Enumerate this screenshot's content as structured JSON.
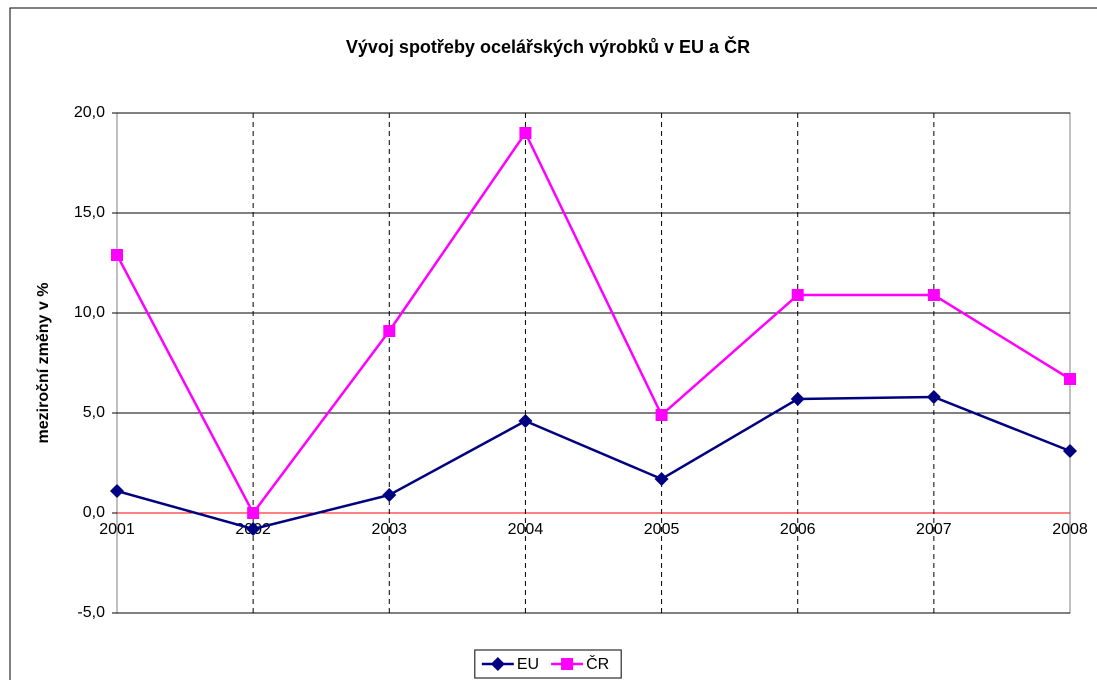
{
  "chart_data": {
    "type": "line",
    "title": "Vývoj spotřeby ocelářských výrobků v EU a ČR",
    "y_label": "meziroční změny v %",
    "categories": [
      "2001",
      "2002",
      "2003",
      "2004",
      "2005",
      "2006",
      "2007",
      "2008"
    ],
    "series": [
      {
        "name": "EU",
        "color": "#000080",
        "marker": "diamond",
        "values": [
          1.1,
          -0.8,
          0.9,
          4.6,
          1.7,
          5.7,
          5.8,
          3.1
        ]
      },
      {
        "name": "ČR",
        "color": "#ff00ff",
        "marker": "square",
        "values": [
          12.9,
          0.0,
          9.1,
          19.0,
          4.9,
          10.9,
          10.9,
          6.7
        ]
      }
    ],
    "ylim": [
      -5,
      20
    ],
    "yticks": [
      {
        "value": -5,
        "label": "-5,0"
      },
      {
        "value": 0,
        "label": "0,0"
      },
      {
        "value": 5,
        "label": "5,0"
      },
      {
        "value": 10,
        "label": "10,0"
      },
      {
        "value": 15,
        "label": "15,0"
      },
      {
        "value": 20,
        "label": "20,0"
      }
    ],
    "grid": true,
    "legend": "bottom"
  }
}
